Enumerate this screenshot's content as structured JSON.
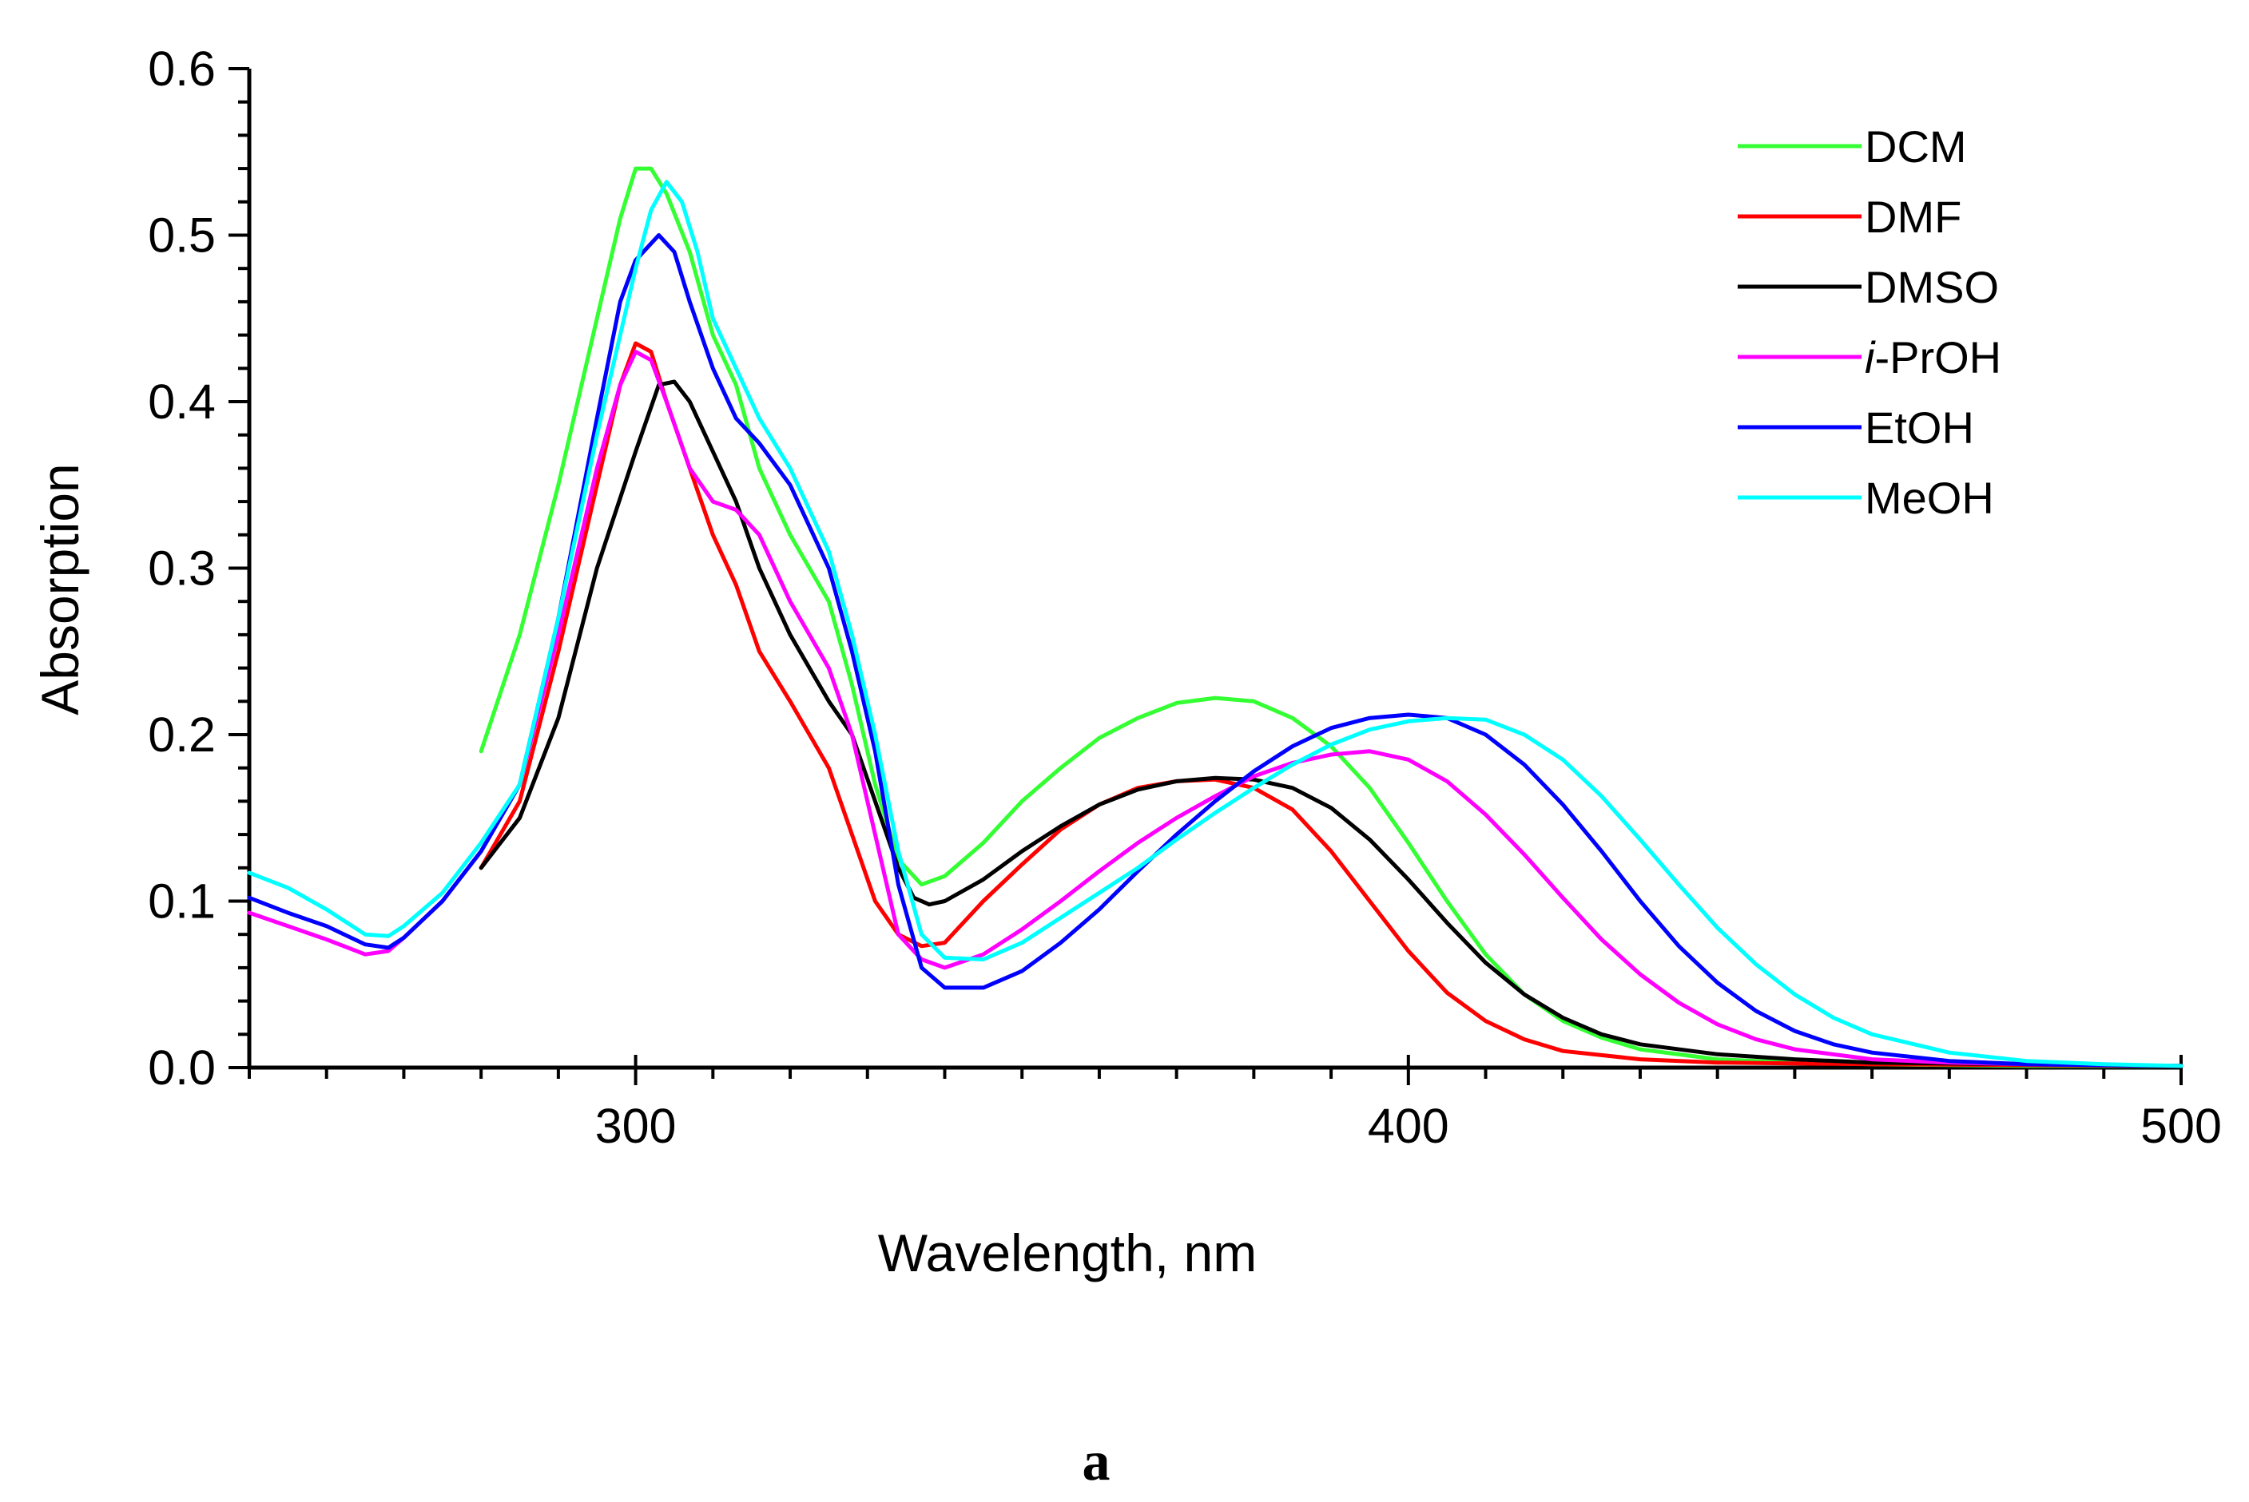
{
  "figure": {
    "panel_label": "a"
  },
  "chart_data": {
    "type": "line",
    "title": "",
    "xlabel": "Wavelength, nm",
    "ylabel": "Absorption",
    "xlim": [
      250,
      500
    ],
    "ylim": [
      0,
      0.6
    ],
    "x_ticks": [
      300,
      400,
      500
    ],
    "x_tick_labels": [
      "300",
      "400",
      "500"
    ],
    "x_minor_step": 10,
    "y_ticks": [
      0,
      0.1,
      0.2,
      0.3,
      0.4,
      0.5,
      0.6
    ],
    "y_tick_labels": [
      "0.0",
      "0.1",
      "0.2",
      "0.3",
      "0.4",
      "0.5",
      "0.6"
    ],
    "y_minor_step": 0.02,
    "grid": false,
    "legend_position": "top-right",
    "series": [
      {
        "name": "DCM",
        "color": "#33ff33",
        "points": [
          [
            280,
            0.19
          ],
          [
            285,
            0.26
          ],
          [
            290,
            0.35
          ],
          [
            295,
            0.45
          ],
          [
            298,
            0.51
          ],
          [
            300,
            0.54
          ],
          [
            302,
            0.54
          ],
          [
            304,
            0.525
          ],
          [
            307,
            0.49
          ],
          [
            310,
            0.44
          ],
          [
            313,
            0.41
          ],
          [
            316,
            0.36
          ],
          [
            320,
            0.32
          ],
          [
            325,
            0.28
          ],
          [
            328,
            0.23
          ],
          [
            331,
            0.17
          ],
          [
            334,
            0.125
          ],
          [
            337,
            0.11
          ],
          [
            340,
            0.115
          ],
          [
            345,
            0.135
          ],
          [
            350,
            0.16
          ],
          [
            355,
            0.18
          ],
          [
            360,
            0.198
          ],
          [
            365,
            0.21
          ],
          [
            370,
            0.219
          ],
          [
            375,
            0.222
          ],
          [
            380,
            0.22
          ],
          [
            385,
            0.21
          ],
          [
            390,
            0.193
          ],
          [
            395,
            0.168
          ],
          [
            400,
            0.135
          ],
          [
            405,
            0.1
          ],
          [
            410,
            0.068
          ],
          [
            415,
            0.044
          ],
          [
            420,
            0.028
          ],
          [
            425,
            0.018
          ],
          [
            430,
            0.011
          ],
          [
            440,
            0.005
          ],
          [
            450,
            0.003
          ],
          [
            460,
            0.002
          ],
          [
            480,
            0.001
          ],
          [
            500,
            0.001
          ]
        ]
      },
      {
        "name": "DMF",
        "color": "#ff0000",
        "points": [
          [
            280,
            0.12
          ],
          [
            285,
            0.16
          ],
          [
            290,
            0.25
          ],
          [
            295,
            0.35
          ],
          [
            298,
            0.41
          ],
          [
            300,
            0.435
          ],
          [
            302,
            0.43
          ],
          [
            304,
            0.4
          ],
          [
            307,
            0.36
          ],
          [
            310,
            0.32
          ],
          [
            313,
            0.29
          ],
          [
            316,
            0.25
          ],
          [
            320,
            0.22
          ],
          [
            325,
            0.18
          ],
          [
            328,
            0.14
          ],
          [
            331,
            0.1
          ],
          [
            334,
            0.08
          ],
          [
            337,
            0.073
          ],
          [
            340,
            0.075
          ],
          [
            345,
            0.1
          ],
          [
            350,
            0.122
          ],
          [
            355,
            0.143
          ],
          [
            360,
            0.158
          ],
          [
            365,
            0.168
          ],
          [
            370,
            0.172
          ],
          [
            375,
            0.173
          ],
          [
            380,
            0.168
          ],
          [
            385,
            0.155
          ],
          [
            390,
            0.13
          ],
          [
            395,
            0.1
          ],
          [
            400,
            0.07
          ],
          [
            405,
            0.045
          ],
          [
            410,
            0.028
          ],
          [
            415,
            0.017
          ],
          [
            420,
            0.01
          ],
          [
            430,
            0.005
          ],
          [
            440,
            0.003
          ],
          [
            460,
            0.002
          ],
          [
            500,
            0.001
          ]
        ]
      },
      {
        "name": "DMSO",
        "color": "#000000",
        "points": [
          [
            280,
            0.12
          ],
          [
            285,
            0.15
          ],
          [
            290,
            0.21
          ],
          [
            295,
            0.3
          ],
          [
            300,
            0.37
          ],
          [
            303,
            0.41
          ],
          [
            305,
            0.412
          ],
          [
            307,
            0.4
          ],
          [
            310,
            0.37
          ],
          [
            313,
            0.34
          ],
          [
            316,
            0.3
          ],
          [
            320,
            0.26
          ],
          [
            325,
            0.22
          ],
          [
            328,
            0.2
          ],
          [
            331,
            0.16
          ],
          [
            334,
            0.12
          ],
          [
            336,
            0.102
          ],
          [
            338,
            0.098
          ],
          [
            340,
            0.1
          ],
          [
            345,
            0.113
          ],
          [
            350,
            0.13
          ],
          [
            355,
            0.145
          ],
          [
            360,
            0.158
          ],
          [
            365,
            0.167
          ],
          [
            370,
            0.172
          ],
          [
            375,
            0.174
          ],
          [
            380,
            0.173
          ],
          [
            385,
            0.168
          ],
          [
            390,
            0.156
          ],
          [
            395,
            0.137
          ],
          [
            400,
            0.113
          ],
          [
            405,
            0.087
          ],
          [
            410,
            0.063
          ],
          [
            415,
            0.044
          ],
          [
            420,
            0.03
          ],
          [
            425,
            0.02
          ],
          [
            430,
            0.014
          ],
          [
            440,
            0.008
          ],
          [
            450,
            0.005
          ],
          [
            460,
            0.003
          ],
          [
            480,
            0.002
          ],
          [
            500,
            0.001
          ]
        ]
      },
      {
        "name": "i-PrOH",
        "color": "#ff00ff",
        "points": [
          [
            250,
            0.093
          ],
          [
            255,
            0.085
          ],
          [
            260,
            0.077
          ],
          [
            265,
            0.068
          ],
          [
            268,
            0.07
          ],
          [
            270,
            0.078
          ],
          [
            275,
            0.1
          ],
          [
            280,
            0.13
          ],
          [
            285,
            0.17
          ],
          [
            290,
            0.26
          ],
          [
            295,
            0.36
          ],
          [
            298,
            0.41
          ],
          [
            300,
            0.43
          ],
          [
            302,
            0.425
          ],
          [
            304,
            0.4
          ],
          [
            307,
            0.36
          ],
          [
            310,
            0.34
          ],
          [
            313,
            0.335
          ],
          [
            316,
            0.32
          ],
          [
            320,
            0.28
          ],
          [
            325,
            0.24
          ],
          [
            328,
            0.2
          ],
          [
            331,
            0.14
          ],
          [
            334,
            0.08
          ],
          [
            337,
            0.065
          ],
          [
            340,
            0.06
          ],
          [
            345,
            0.068
          ],
          [
            350,
            0.083
          ],
          [
            355,
            0.1
          ],
          [
            360,
            0.118
          ],
          [
            365,
            0.135
          ],
          [
            370,
            0.15
          ],
          [
            375,
            0.163
          ],
          [
            380,
            0.175
          ],
          [
            385,
            0.183
          ],
          [
            390,
            0.188
          ],
          [
            395,
            0.19
          ],
          [
            400,
            0.185
          ],
          [
            405,
            0.172
          ],
          [
            410,
            0.152
          ],
          [
            415,
            0.128
          ],
          [
            420,
            0.102
          ],
          [
            425,
            0.077
          ],
          [
            430,
            0.056
          ],
          [
            435,
            0.039
          ],
          [
            440,
            0.026
          ],
          [
            445,
            0.017
          ],
          [
            450,
            0.011
          ],
          [
            460,
            0.005
          ],
          [
            470,
            0.003
          ],
          [
            480,
            0.002
          ],
          [
            500,
            0.001
          ]
        ]
      },
      {
        "name": "EtOH",
        "color": "#0000ff",
        "points": [
          [
            250,
            0.102
          ],
          [
            255,
            0.093
          ],
          [
            260,
            0.085
          ],
          [
            265,
            0.074
          ],
          [
            268,
            0.072
          ],
          [
            270,
            0.078
          ],
          [
            275,
            0.1
          ],
          [
            280,
            0.13
          ],
          [
            285,
            0.17
          ],
          [
            290,
            0.27
          ],
          [
            295,
            0.39
          ],
          [
            298,
            0.46
          ],
          [
            300,
            0.485
          ],
          [
            303,
            0.5
          ],
          [
            305,
            0.49
          ],
          [
            307,
            0.46
          ],
          [
            310,
            0.42
          ],
          [
            313,
            0.39
          ],
          [
            316,
            0.375
          ],
          [
            320,
            0.35
          ],
          [
            325,
            0.3
          ],
          [
            328,
            0.25
          ],
          [
            331,
            0.19
          ],
          [
            334,
            0.11
          ],
          [
            337,
            0.06
          ],
          [
            340,
            0.048
          ],
          [
            345,
            0.048
          ],
          [
            350,
            0.058
          ],
          [
            355,
            0.075
          ],
          [
            360,
            0.095
          ],
          [
            365,
            0.118
          ],
          [
            370,
            0.14
          ],
          [
            375,
            0.16
          ],
          [
            380,
            0.178
          ],
          [
            385,
            0.193
          ],
          [
            390,
            0.204
          ],
          [
            395,
            0.21
          ],
          [
            400,
            0.212
          ],
          [
            405,
            0.21
          ],
          [
            410,
            0.2
          ],
          [
            415,
            0.182
          ],
          [
            420,
            0.158
          ],
          [
            425,
            0.13
          ],
          [
            430,
            0.1
          ],
          [
            435,
            0.073
          ],
          [
            440,
            0.051
          ],
          [
            445,
            0.034
          ],
          [
            450,
            0.022
          ],
          [
            455,
            0.014
          ],
          [
            460,
            0.009
          ],
          [
            470,
            0.004
          ],
          [
            480,
            0.002
          ],
          [
            500,
            0.001
          ]
        ]
      },
      {
        "name": "MeOH",
        "color": "#00ffff",
        "points": [
          [
            250,
            0.117
          ],
          [
            255,
            0.108
          ],
          [
            260,
            0.095
          ],
          [
            265,
            0.08
          ],
          [
            268,
            0.079
          ],
          [
            270,
            0.085
          ],
          [
            275,
            0.105
          ],
          [
            280,
            0.135
          ],
          [
            285,
            0.17
          ],
          [
            290,
            0.27
          ],
          [
            295,
            0.38
          ],
          [
            298,
            0.44
          ],
          [
            300,
            0.48
          ],
          [
            302,
            0.515
          ],
          [
            304,
            0.532
          ],
          [
            306,
            0.52
          ],
          [
            308,
            0.49
          ],
          [
            310,
            0.45
          ],
          [
            313,
            0.42
          ],
          [
            316,
            0.39
          ],
          [
            320,
            0.36
          ],
          [
            325,
            0.31
          ],
          [
            328,
            0.26
          ],
          [
            331,
            0.2
          ],
          [
            334,
            0.13
          ],
          [
            337,
            0.08
          ],
          [
            340,
            0.066
          ],
          [
            345,
            0.065
          ],
          [
            350,
            0.075
          ],
          [
            355,
            0.09
          ],
          [
            360,
            0.105
          ],
          [
            365,
            0.12
          ],
          [
            370,
            0.137
          ],
          [
            375,
            0.153
          ],
          [
            380,
            0.168
          ],
          [
            385,
            0.182
          ],
          [
            390,
            0.194
          ],
          [
            395,
            0.203
          ],
          [
            400,
            0.208
          ],
          [
            405,
            0.21
          ],
          [
            410,
            0.209
          ],
          [
            415,
            0.2
          ],
          [
            420,
            0.185
          ],
          [
            425,
            0.163
          ],
          [
            430,
            0.137
          ],
          [
            435,
            0.11
          ],
          [
            440,
            0.084
          ],
          [
            445,
            0.062
          ],
          [
            450,
            0.044
          ],
          [
            455,
            0.03
          ],
          [
            460,
            0.02
          ],
          [
            470,
            0.009
          ],
          [
            480,
            0.004
          ],
          [
            490,
            0.002
          ],
          [
            500,
            0.001
          ]
        ]
      }
    ]
  }
}
